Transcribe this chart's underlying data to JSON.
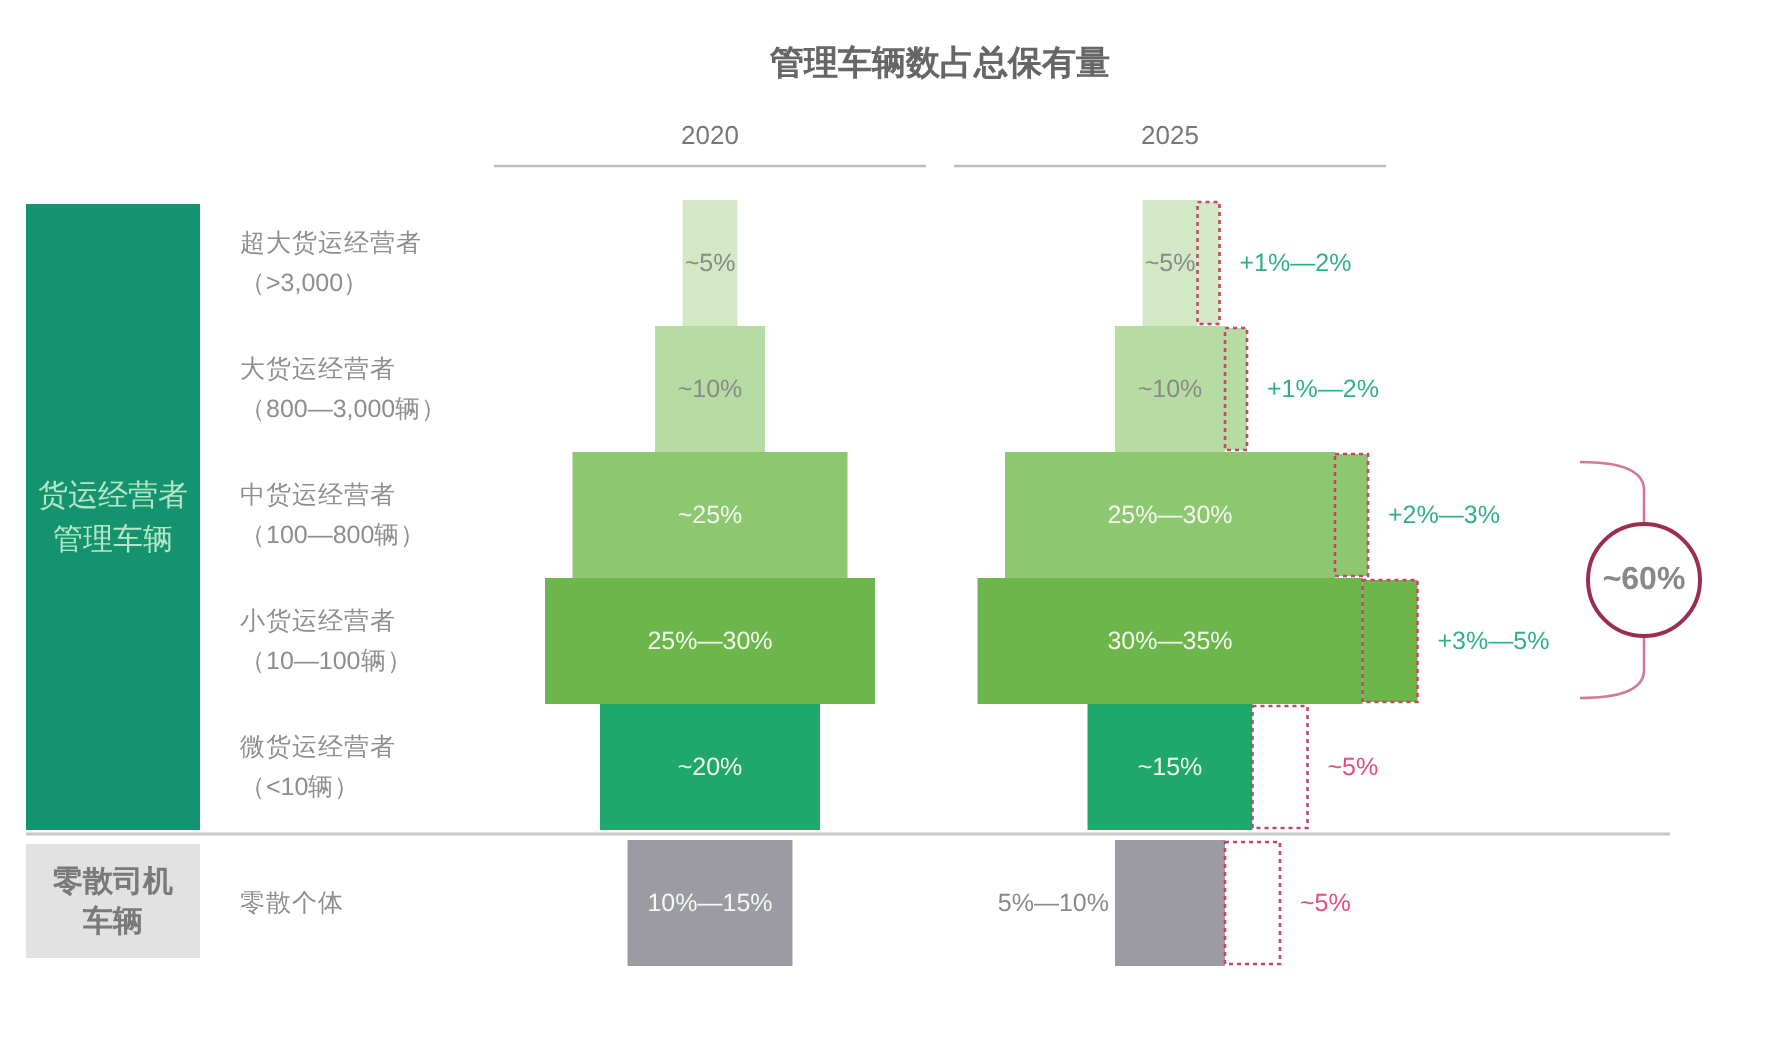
{
  "chart_data": {
    "type": "other",
    "title": "管理车辆数占总保有量",
    "categories": [
      "超大货运经营者（>3,000）",
      "大货运经营者（800—3,000辆）",
      "中货运经营者（100—800辆）",
      "小货运经营者（10—100辆）",
      "微货运经营者（<10辆）",
      "零散个体"
    ],
    "series": [
      {
        "name": "2020",
        "colors": [
          "#d3e9c6",
          "#b7dca3",
          "#8dc870",
          "#6cb64c",
          "#1fa86a",
          "#9c9aa3"
        ],
        "values": [
          5,
          10,
          25,
          30,
          20,
          15
        ],
        "value_labels": [
          "~5%",
          "~10%",
          "~25%",
          "25%—30%",
          "~20%",
          "10%—15%"
        ]
      },
      {
        "name": "2025",
        "colors": [
          "#d3e9c6",
          "#b7dca3",
          "#8dc870",
          "#6cb64c",
          "#1fa86a",
          "#9c9aa3"
        ],
        "values": [
          5,
          10,
          30,
          35,
          15,
          10
        ],
        "value_labels": [
          "~5%",
          "~10%",
          "25%—30%",
          "30%—35%",
          "~15%",
          "5%—10%"
        ]
      },
      {
        "colors": [
          "#2fb08a",
          "#2fb08a",
          "#2fb08a",
          "#2fb08a",
          "#e34d7f",
          "#e34d7f"
        ],
        "values": [
          2,
          2,
          3,
          5,
          5,
          5
        ],
        "value_labels": [
          "+1%—2%",
          "+1%—2%",
          "+2%—3%",
          "+3%—5%",
          "~5%",
          "~5%"
        ]
      }
    ],
    "annotations": [
      "货运经营者管理车辆",
      "零散司机车辆",
      "~60%"
    ]
  }
}
